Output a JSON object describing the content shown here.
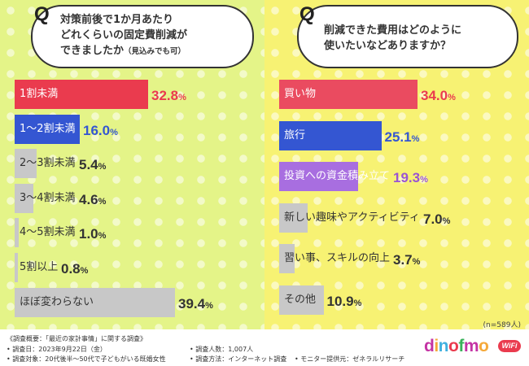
{
  "left": {
    "question": {
      "mark": "Q",
      "line1": "対策前後で1か月あたり",
      "line2": "どれくらいの固定費削減が",
      "line3": "できましたか",
      "note": "（見込みでも可）"
    }
  },
  "right": {
    "question": {
      "mark": "Q",
      "line1": "削減できた費用はどのように",
      "line2": "使いたいなどありますか？"
    },
    "n_label": "(n=589人)"
  },
  "chart_data": [
    {
      "type": "bar",
      "orientation": "horizontal",
      "title": "対策前後で1か月あたりどれくらいの固定費削減ができましたか（見込みでも可）",
      "unit": "%",
      "xlim": [
        0,
        50
      ],
      "categories": [
        "1割未満",
        "1〜2割未満",
        "2〜3割未満",
        "3〜4割未満",
        "4〜5割未満",
        "5割以上",
        "ほぼ変わらない"
      ],
      "values": [
        32.8,
        16.0,
        5.4,
        4.6,
        1.0,
        0.8,
        39.4
      ],
      "value_labels": [
        "32.8",
        "16.0",
        "5.4",
        "4.6",
        "1.0",
        "0.8",
        "39.4"
      ],
      "colors": [
        "#ea3b4e",
        "#3456d2",
        "#c8c8c8",
        "#c8c8c8",
        "#c8c8c8",
        "#c8c8c8",
        "#c8c8c8"
      ],
      "value_colors": [
        "#ea3b4e",
        "#3456d2",
        "#333333",
        "#333333",
        "#333333",
        "#333333",
        "#333333"
      ]
    },
    {
      "type": "bar",
      "orientation": "horizontal",
      "title": "削減できた費用はどのように使いたいなどありますか？",
      "unit": "%",
      "xlim": [
        0,
        50
      ],
      "categories": [
        "買い物",
        "旅行",
        "投資への資金積み立て",
        "新しい趣味やアクティビティ",
        "習い事、スキルの向上",
        "その他"
      ],
      "values": [
        34.0,
        25.1,
        19.3,
        7.0,
        3.7,
        10.9
      ],
      "value_labels": [
        "34.0",
        "25.1",
        "19.3",
        "7.0",
        "3.7",
        "10.9"
      ],
      "colors": [
        "#ea4b60",
        "#3456d2",
        "#a86ee0",
        "#c8c8c8",
        "#c8c8c8",
        "#c8c8c8"
      ],
      "value_colors": [
        "#ea3b4e",
        "#3456d2",
        "#9a54d2",
        "#333333",
        "#333333",
        "#333333"
      ]
    }
  ],
  "footer": {
    "survey_title": "《調査概要：「最近の家計事情」に関する調査》",
    "date": "• 調査日：2023年9月22日（金）",
    "target": "• 調査対象：20代後半〜50代で子どもがいる既婚女性",
    "count": "• 調査人数：1,007人",
    "method": "• 調査方法：インターネット調査",
    "provider": "• モニター提供元：ゼネラルリサーチ"
  },
  "logo": {
    "letters": [
      "d",
      "i",
      "n",
      "o",
      "f",
      "m",
      "o"
    ],
    "badge": "WiFi"
  }
}
